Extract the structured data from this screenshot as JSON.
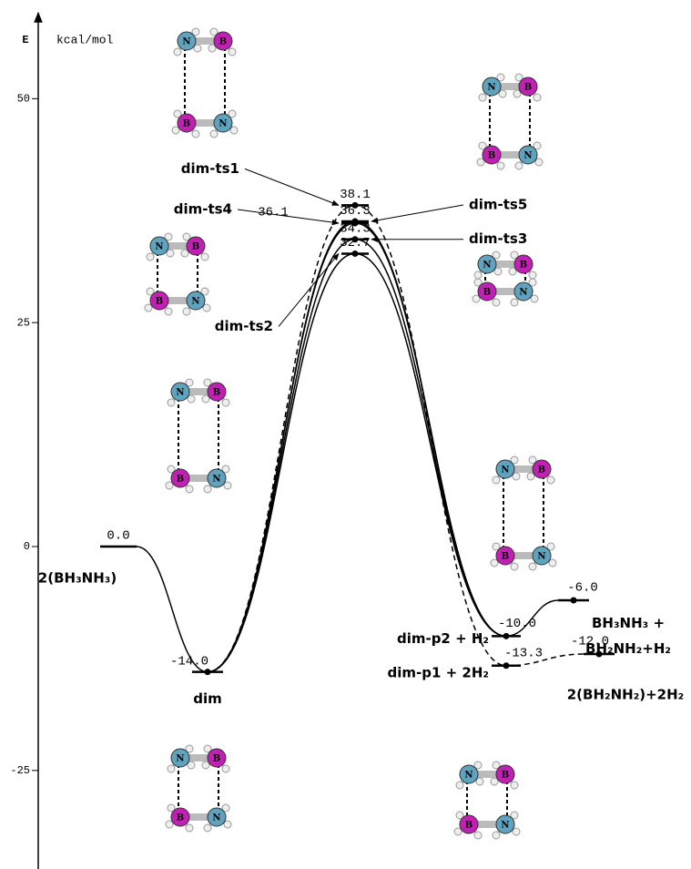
{
  "chart_data": {
    "type": "energy-profile",
    "y_label": "E",
    "y_unit": "kcal/mol",
    "ylim": [
      -36,
      60
    ],
    "yticks": [
      -25,
      0,
      25,
      50
    ],
    "categories": [
      "2(BH₃NH₃)",
      "dim",
      "dim-ts1",
      "dim-ts4",
      "dim-ts5",
      "dim-ts3",
      "dim-ts2",
      "dim-p2 + H₂",
      "dim-p1 + 2H₂",
      "BH₃NH₃ + BH₂NH₂+H₂",
      "2(BH₂NH₂)+2H₂"
    ],
    "values": [
      0,
      -14,
      38.1,
      36.1,
      36.3,
      34.3,
      32.7,
      -10,
      -13.3,
      -6,
      -12
    ],
    "value_labels": [
      "0.0",
      "-14.0",
      "38.1",
      "36.1",
      "36.3",
      "34.3",
      "32.7",
      "-10.0",
      "-13.3",
      "-6.0",
      "-12.0"
    ],
    "atom_labels": [
      "N",
      "B"
    ]
  }
}
